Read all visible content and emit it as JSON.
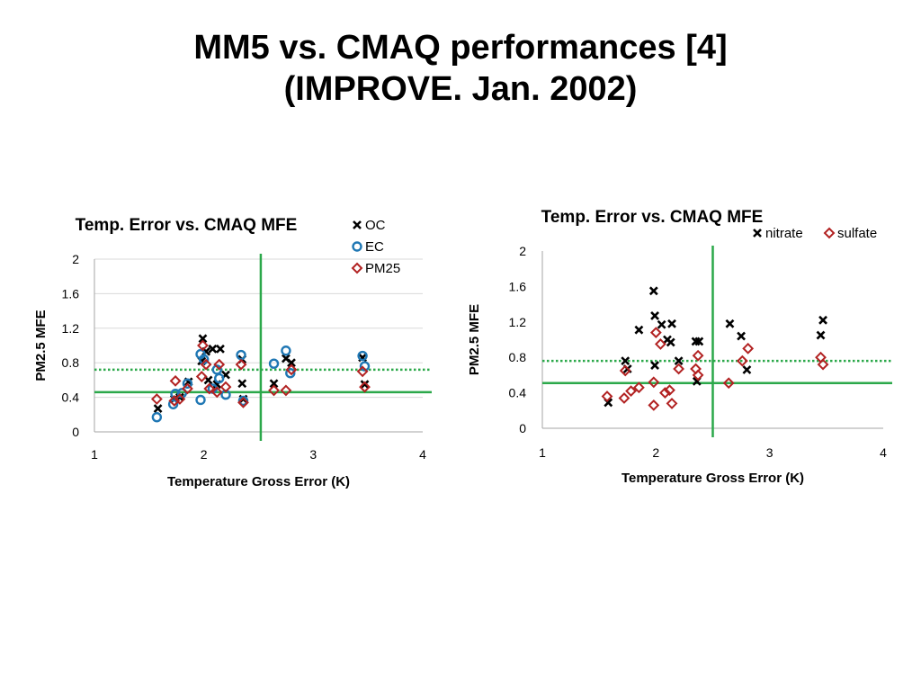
{
  "slide": {
    "title_line1": "MM5 vs. CMAQ performances [4]",
    "title_line2": "(IMPROVE. Jan. 2002)"
  },
  "colors": {
    "green": "#2ba84a",
    "black": "#000000",
    "blue": "#1f77b4",
    "red": "#b22222",
    "gridline": "#d9d9d9",
    "axis": "#a6a6a6"
  },
  "chart_data": [
    {
      "type": "scatter",
      "title": "Temp. Error vs. CMAQ MFE",
      "xlabel": "Temperature Gross Error (K)",
      "ylabel": "PM2.5  MFE",
      "xlim": [
        1,
        4
      ],
      "ylim": [
        0,
        2
      ],
      "xticks": [
        1,
        2,
        3,
        4
      ],
      "yticks": [
        0,
        0.4,
        0.8,
        1.2,
        1.6,
        2
      ],
      "grid": "horizontal",
      "legend_position": "top-right",
      "vline_x": 2.52,
      "hline_solid_y": 0.46,
      "hline_dotted_y": 0.72,
      "series": [
        {
          "name": "OC",
          "marker": "x",
          "color": "#000000",
          "points": [
            [
              1.58,
              0.27
            ],
            [
              1.73,
              0.38
            ],
            [
              1.78,
              0.4
            ],
            [
              1.86,
              0.58
            ],
            [
              1.98,
              0.82
            ],
            [
              1.99,
              1.08
            ],
            [
              2.02,
              0.93
            ],
            [
              2.04,
              0.6
            ],
            [
              2.08,
              0.96
            ],
            [
              2.12,
              0.55
            ],
            [
              2.15,
              0.96
            ],
            [
              2.2,
              0.66
            ],
            [
              2.35,
              0.56
            ],
            [
              2.36,
              0.38
            ],
            [
              2.35,
              0.84
            ],
            [
              2.64,
              0.56
            ],
            [
              2.75,
              0.85
            ],
            [
              2.8,
              0.8
            ],
            [
              3.45,
              0.86
            ],
            [
              3.47,
              0.55
            ]
          ]
        },
        {
          "name": "EC",
          "marker": "o",
          "color": "#1f77b4",
          "points": [
            [
              1.57,
              0.17
            ],
            [
              1.72,
              0.32
            ],
            [
              1.74,
              0.44
            ],
            [
              1.8,
              0.45
            ],
            [
              1.85,
              0.56
            ],
            [
              1.97,
              0.37
            ],
            [
              1.97,
              0.9
            ],
            [
              2.0,
              0.84
            ],
            [
              2.08,
              0.5
            ],
            [
              2.12,
              0.72
            ],
            [
              2.14,
              0.62
            ],
            [
              2.2,
              0.43
            ],
            [
              2.34,
              0.89
            ],
            [
              2.36,
              0.36
            ],
            [
              2.64,
              0.79
            ],
            [
              2.75,
              0.94
            ],
            [
              2.79,
              0.68
            ],
            [
              3.45,
              0.88
            ],
            [
              3.47,
              0.76
            ]
          ]
        },
        {
          "name": "PM25",
          "marker": "diamond",
          "color": "#b22222",
          "points": [
            [
              1.57,
              0.38
            ],
            [
              1.73,
              0.36
            ],
            [
              1.74,
              0.59
            ],
            [
              1.78,
              0.38
            ],
            [
              1.85,
              0.5
            ],
            [
              1.98,
              0.64
            ],
            [
              1.99,
              1.0
            ],
            [
              2.02,
              0.78
            ],
            [
              2.05,
              0.5
            ],
            [
              2.12,
              0.46
            ],
            [
              2.14,
              0.78
            ],
            [
              2.2,
              0.52
            ],
            [
              2.34,
              0.78
            ],
            [
              2.36,
              0.34
            ],
            [
              2.64,
              0.48
            ],
            [
              2.75,
              0.48
            ],
            [
              2.8,
              0.72
            ],
            [
              3.45,
              0.7
            ],
            [
              3.47,
              0.52
            ]
          ]
        }
      ]
    },
    {
      "type": "scatter",
      "title": "Temp. Error vs. CMAQ MFE",
      "xlabel": "Temperature Gross Error (K)",
      "ylabel": "PM2.5  MFE",
      "xlim": [
        1,
        4
      ],
      "ylim": [
        0,
        2
      ],
      "xticks": [
        1,
        2,
        3,
        4
      ],
      "yticks": [
        0,
        0.4,
        0.8,
        1.2,
        1.6,
        2
      ],
      "grid": "none",
      "legend_position": "top-right",
      "vline_x": 2.5,
      "hline_solid_y": 0.51,
      "hline_dotted_y": 0.76,
      "series": [
        {
          "name": "nitrate",
          "marker": "x",
          "color": "#000000",
          "points": [
            [
              1.58,
              0.29
            ],
            [
              1.73,
              0.76
            ],
            [
              1.75,
              0.67
            ],
            [
              1.85,
              1.11
            ],
            [
              1.98,
              1.55
            ],
            [
              1.99,
              1.27
            ],
            [
              1.99,
              0.71
            ],
            [
              2.05,
              1.17
            ],
            [
              2.1,
              1.0
            ],
            [
              2.13,
              0.97
            ],
            [
              2.14,
              1.18
            ],
            [
              2.2,
              0.76
            ],
            [
              2.35,
              0.98
            ],
            [
              2.36,
              0.53
            ],
            [
              2.38,
              0.98
            ],
            [
              2.65,
              1.18
            ],
            [
              2.75,
              1.04
            ],
            [
              2.8,
              0.66
            ],
            [
              3.45,
              1.05
            ],
            [
              3.47,
              1.22
            ]
          ]
        },
        {
          "name": "sulfate",
          "marker": "diamond",
          "color": "#b22222",
          "points": [
            [
              1.57,
              0.36
            ],
            [
              1.72,
              0.34
            ],
            [
              1.73,
              0.65
            ],
            [
              1.78,
              0.42
            ],
            [
              1.85,
              0.46
            ],
            [
              1.98,
              0.52
            ],
            [
              1.98,
              0.26
            ],
            [
              2.0,
              1.08
            ],
            [
              2.04,
              0.95
            ],
            [
              2.08,
              0.4
            ],
            [
              2.12,
              0.43
            ],
            [
              2.14,
              0.28
            ],
            [
              2.2,
              0.67
            ],
            [
              2.35,
              0.67
            ],
            [
              2.37,
              0.6
            ],
            [
              2.37,
              0.82
            ],
            [
              2.64,
              0.51
            ],
            [
              2.76,
              0.76
            ],
            [
              2.81,
              0.9
            ],
            [
              3.45,
              0.8
            ],
            [
              3.47,
              0.72
            ]
          ]
        }
      ]
    }
  ]
}
